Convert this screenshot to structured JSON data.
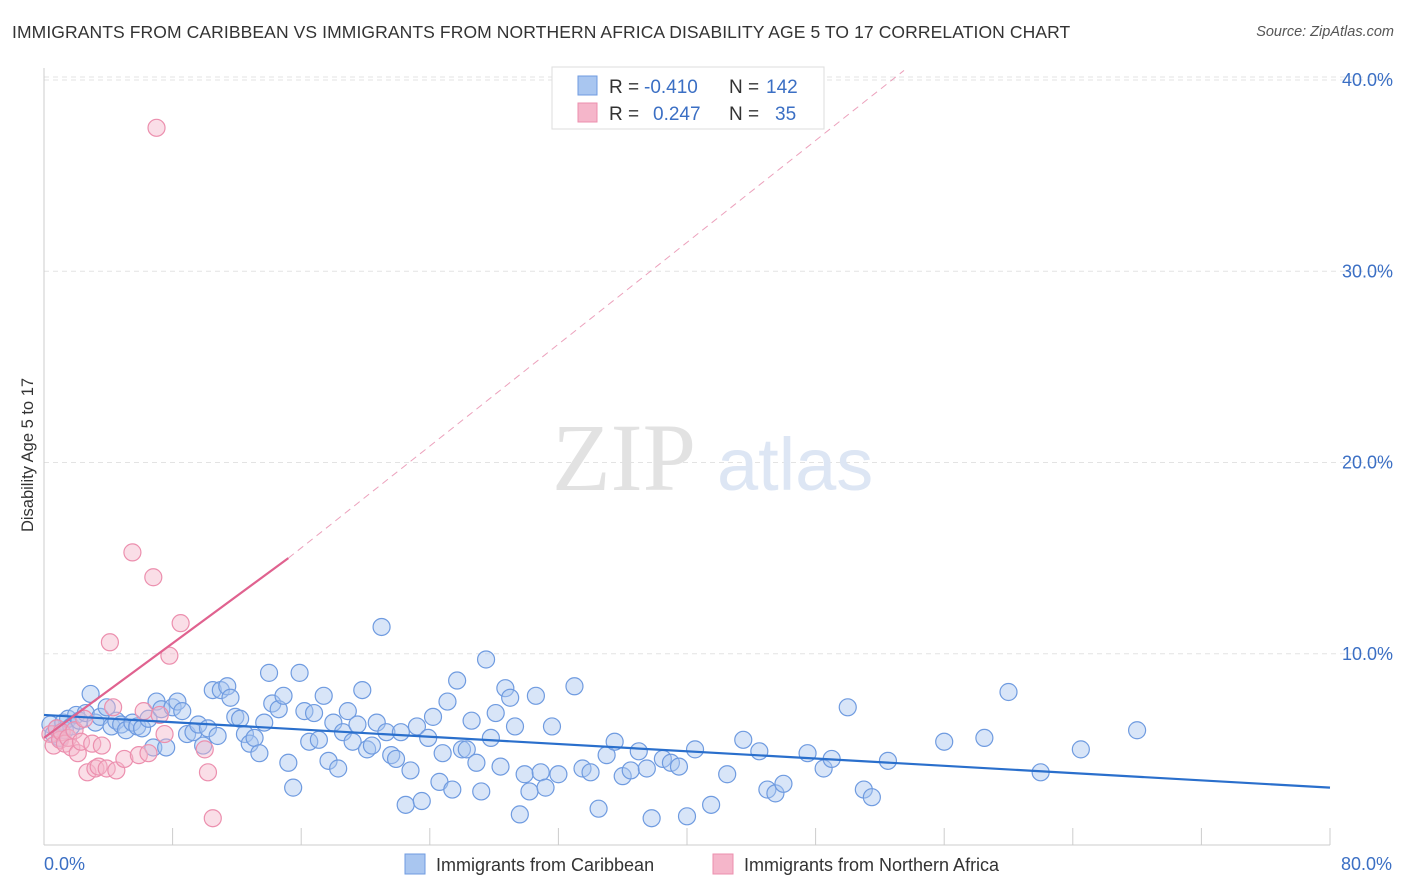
{
  "title": "IMMIGRANTS FROM CARIBBEAN VS IMMIGRANTS FROM NORTHERN AFRICA DISABILITY AGE 5 TO 17 CORRELATION CHART",
  "source": "Source: ZipAtlas.com",
  "watermark": {
    "zip": "ZIP",
    "atlas": "atlas"
  },
  "colors": {
    "blue_fill": "#a9c6f0",
    "blue_stroke": "#6f9be0",
    "blue_line": "#2a6fcc",
    "pink_fill": "#f5b6ca",
    "pink_stroke": "#ec8fae",
    "pink_line": "#e0628f",
    "tick_label": "#3b6fc4",
    "grid": "#e3e3e3"
  },
  "legend": {
    "rows": [
      {
        "r_label": "R =",
        "r_value": "-0.410",
        "n_label": "N =",
        "n_value": "142",
        "color": "blue"
      },
      {
        "r_label": "R =",
        "r_value": "0.247",
        "n_label": "N =",
        "n_value": "35",
        "color": "pink"
      }
    ]
  },
  "chart_data": {
    "type": "scatter",
    "title": "IMMIGRANTS FROM CARIBBEAN VS IMMIGRANTS FROM NORTHERN AFRICA DISABILITY AGE 5 TO 17 CORRELATION CHART",
    "xlabel": "",
    "ylabel": "Disability Age 5 to 17",
    "xlim": [
      0,
      80
    ],
    "ylim": [
      0,
      42
    ],
    "x_tick_labels": [
      {
        "value": 0,
        "label": "0.0%"
      },
      {
        "value": 80,
        "label": "80.0%"
      }
    ],
    "y_tick_labels": [
      {
        "value": 10,
        "label": "10.0%"
      },
      {
        "value": 20,
        "label": "20.0%"
      },
      {
        "value": 30,
        "label": "30.0%"
      },
      {
        "value": 40,
        "label": "40.0%"
      }
    ],
    "x_minor_ticks": [
      0,
      8,
      16,
      24,
      32,
      40,
      48,
      56,
      64,
      72,
      80
    ],
    "grid": true,
    "legend_position": "top-center",
    "series": [
      {
        "name": "Immigrants from Caribbean",
        "color": "blue",
        "trend": {
          "x1": 0,
          "y1": 6.8,
          "x2": 80,
          "y2": 3.0
        },
        "points": [
          [
            0.4,
            6.3
          ],
          [
            0.6,
            5.8
          ],
          [
            0.8,
            6.1
          ],
          [
            1.0,
            5.6
          ],
          [
            1.2,
            6.4
          ],
          [
            1.3,
            6.0
          ],
          [
            1.5,
            6.6
          ],
          [
            1.7,
            6.2
          ],
          [
            2.0,
            6.8
          ],
          [
            2.2,
            6.5
          ],
          [
            2.6,
            6.9
          ],
          [
            2.9,
            7.9
          ],
          [
            3.2,
            6.4
          ],
          [
            3.5,
            6.7
          ],
          [
            3.9,
            7.2
          ],
          [
            4.2,
            6.2
          ],
          [
            4.5,
            6.5
          ],
          [
            4.8,
            6.3
          ],
          [
            5.1,
            6.0
          ],
          [
            5.5,
            6.4
          ],
          [
            5.8,
            6.2
          ],
          [
            6.1,
            6.1
          ],
          [
            6.5,
            6.6
          ],
          [
            6.8,
            5.1
          ],
          [
            7.0,
            7.5
          ],
          [
            7.3,
            7.1
          ],
          [
            7.6,
            5.1
          ],
          [
            8.0,
            7.2
          ],
          [
            8.3,
            7.5
          ],
          [
            8.6,
            7.0
          ],
          [
            8.9,
            5.8
          ],
          [
            9.3,
            5.9
          ],
          [
            9.6,
            6.3
          ],
          [
            9.9,
            5.2
          ],
          [
            10.2,
            6.1
          ],
          [
            10.5,
            8.1
          ],
          [
            10.8,
            5.7
          ],
          [
            11.0,
            8.1
          ],
          [
            11.4,
            8.3
          ],
          [
            11.6,
            7.7
          ],
          [
            11.9,
            6.7
          ],
          [
            12.2,
            6.6
          ],
          [
            12.5,
            5.8
          ],
          [
            12.8,
            5.3
          ],
          [
            13.1,
            5.6
          ],
          [
            13.4,
            4.8
          ],
          [
            13.7,
            6.4
          ],
          [
            14.0,
            9.0
          ],
          [
            14.2,
            7.4
          ],
          [
            14.6,
            7.1
          ],
          [
            14.9,
            7.8
          ],
          [
            15.2,
            4.3
          ],
          [
            15.5,
            3.0
          ],
          [
            15.9,
            9.0
          ],
          [
            16.2,
            7.0
          ],
          [
            16.5,
            5.4
          ],
          [
            16.8,
            6.9
          ],
          [
            17.1,
            5.5
          ],
          [
            17.4,
            7.8
          ],
          [
            17.7,
            4.4
          ],
          [
            18.0,
            6.4
          ],
          [
            18.3,
            4.0
          ],
          [
            18.6,
            5.9
          ],
          [
            18.9,
            7.0
          ],
          [
            19.2,
            5.4
          ],
          [
            19.5,
            6.3
          ],
          [
            19.8,
            8.1
          ],
          [
            20.1,
            5.0
          ],
          [
            20.4,
            5.2
          ],
          [
            20.7,
            6.4
          ],
          [
            21.0,
            11.4
          ],
          [
            21.3,
            5.9
          ],
          [
            21.6,
            4.7
          ],
          [
            21.9,
            4.5
          ],
          [
            22.2,
            5.9
          ],
          [
            22.5,
            2.1
          ],
          [
            22.8,
            3.9
          ],
          [
            23.2,
            6.2
          ],
          [
            23.5,
            2.3
          ],
          [
            23.9,
            5.6
          ],
          [
            24.2,
            6.7
          ],
          [
            24.6,
            3.3
          ],
          [
            24.8,
            4.8
          ],
          [
            25.1,
            7.5
          ],
          [
            25.4,
            2.9
          ],
          [
            25.7,
            8.6
          ],
          [
            26.0,
            5.0
          ],
          [
            26.3,
            5.0
          ],
          [
            26.6,
            6.5
          ],
          [
            26.9,
            4.3
          ],
          [
            27.2,
            2.8
          ],
          [
            27.5,
            9.7
          ],
          [
            27.8,
            5.6
          ],
          [
            28.1,
            6.9
          ],
          [
            28.4,
            4.1
          ],
          [
            28.7,
            8.2
          ],
          [
            29.0,
            7.7
          ],
          [
            29.3,
            6.2
          ],
          [
            29.6,
            1.6
          ],
          [
            29.9,
            3.7
          ],
          [
            30.2,
            2.8
          ],
          [
            30.6,
            7.8
          ],
          [
            30.9,
            3.8
          ],
          [
            31.2,
            3.0
          ],
          [
            31.6,
            6.2
          ],
          [
            32.0,
            3.7
          ],
          [
            33.0,
            8.3
          ],
          [
            33.5,
            4.0
          ],
          [
            34.0,
            3.8
          ],
          [
            34.5,
            1.9
          ],
          [
            35.0,
            4.7
          ],
          [
            35.5,
            5.4
          ],
          [
            36.0,
            3.6
          ],
          [
            36.5,
            3.9
          ],
          [
            37.0,
            4.9
          ],
          [
            37.5,
            4.0
          ],
          [
            37.8,
            1.4
          ],
          [
            38.5,
            4.5
          ],
          [
            39.0,
            4.3
          ],
          [
            39.5,
            4.1
          ],
          [
            40.0,
            1.5
          ],
          [
            40.5,
            5.0
          ],
          [
            41.5,
            2.1
          ],
          [
            42.5,
            3.7
          ],
          [
            43.5,
            5.5
          ],
          [
            44.5,
            4.9
          ],
          [
            45.0,
            2.9
          ],
          [
            45.5,
            2.7
          ],
          [
            46.0,
            3.2
          ],
          [
            47.5,
            4.8
          ],
          [
            48.5,
            4.0
          ],
          [
            49.0,
            4.5
          ],
          [
            50.0,
            7.2
          ],
          [
            51.0,
            2.9
          ],
          [
            51.5,
            2.5
          ],
          [
            56.0,
            5.4
          ],
          [
            60.0,
            8.0
          ],
          [
            62.0,
            3.8
          ],
          [
            64.5,
            5.0
          ],
          [
            68.0,
            6.0
          ],
          [
            52.5,
            4.4
          ],
          [
            58.5,
            5.6
          ]
        ]
      },
      {
        "name": "Immigrants from Northern Africa",
        "color": "pink",
        "trend": {
          "x1": 0,
          "y1": 5.6,
          "x2": 15.2,
          "y2": 15.0,
          "dash_x2": 53.5,
          "dash_y2": 40.5
        },
        "points": [
          [
            0.4,
            5.8
          ],
          [
            0.6,
            5.2
          ],
          [
            0.8,
            6.1
          ],
          [
            1.0,
            5.5
          ],
          [
            1.1,
            5.9
          ],
          [
            1.3,
            5.3
          ],
          [
            1.5,
            5.6
          ],
          [
            1.7,
            5.1
          ],
          [
            1.9,
            6.0
          ],
          [
            2.1,
            4.8
          ],
          [
            2.3,
            5.4
          ],
          [
            2.5,
            6.6
          ],
          [
            2.7,
            3.8
          ],
          [
            3.0,
            5.3
          ],
          [
            3.2,
            4.0
          ],
          [
            3.4,
            4.1
          ],
          [
            3.6,
            5.2
          ],
          [
            3.9,
            4.0
          ],
          [
            4.1,
            10.6
          ],
          [
            4.3,
            7.2
          ],
          [
            4.5,
            3.9
          ],
          [
            5.0,
            4.5
          ],
          [
            5.5,
            15.3
          ],
          [
            5.9,
            4.7
          ],
          [
            6.2,
            7.0
          ],
          [
            6.5,
            4.8
          ],
          [
            6.8,
            14.0
          ],
          [
            7.2,
            6.8
          ],
          [
            7.5,
            5.8
          ],
          [
            7.8,
            9.9
          ],
          [
            8.5,
            11.6
          ],
          [
            10.0,
            5.0
          ],
          [
            10.2,
            3.8
          ],
          [
            10.5,
            1.4
          ],
          [
            7.0,
            37.5
          ]
        ]
      }
    ]
  },
  "bottom_legend": [
    {
      "label": "Immigrants from Caribbean",
      "color": "blue"
    },
    {
      "label": "Immigrants from Northern Africa",
      "color": "pink"
    }
  ]
}
